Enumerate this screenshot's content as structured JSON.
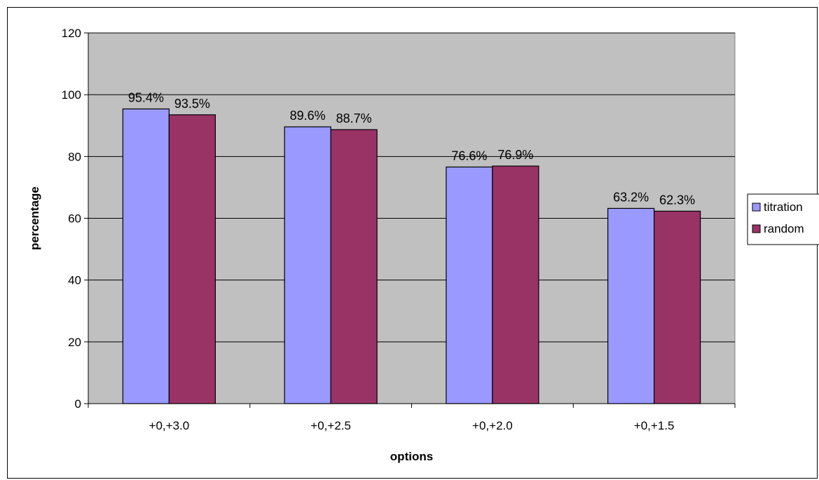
{
  "chart_data": {
    "type": "bar",
    "categories": [
      "+0,+3.0",
      "+0,+2.5",
      "+0,+2.0",
      "+0,+1.5"
    ],
    "series": [
      {
        "name": "titration",
        "values": [
          95.4,
          89.6,
          76.6,
          63.2
        ],
        "labels": [
          "95.4%",
          "89.6%",
          "76.6%",
          "63.2%"
        ],
        "color": "#9999ff"
      },
      {
        "name": "random",
        "values": [
          93.5,
          88.7,
          76.9,
          62.3
        ],
        "labels": [
          "93.5%",
          "88.7%",
          "76.9%",
          "62.3%"
        ],
        "color": "#993366"
      }
    ],
    "xlabel": "options",
    "ylabel": "percentage",
    "ylim": [
      0,
      120
    ],
    "yticks": [
      0,
      20,
      40,
      60,
      80,
      100,
      120
    ],
    "grid": true,
    "plot_background": "#c0c0c0",
    "legend_position": "right"
  }
}
